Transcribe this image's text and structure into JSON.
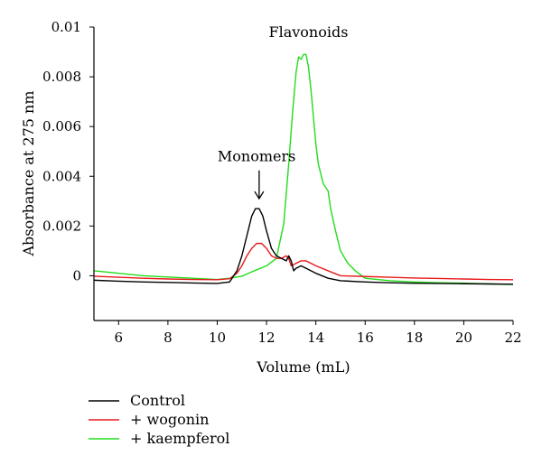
{
  "chart_data": {
    "type": "line",
    "xlabel": "Volume (mL)",
    "ylabel": "Absorbance at 275 nm",
    "xlim": [
      5,
      22
    ],
    "ylim": [
      -0.0018,
      0.01
    ],
    "xticks": [
      6,
      8,
      10,
      12,
      14,
      16,
      18,
      20,
      22
    ],
    "yticks": [
      0,
      0.002,
      0.004,
      0.006,
      0.008,
      0.01
    ],
    "ytick_labels": [
      "0",
      "0.002",
      "0.004",
      "0.006",
      "0.008",
      "0.01"
    ],
    "grid": false,
    "legend_position": "bottom-left",
    "annotations": [
      {
        "text": "Flavonoids",
        "x": 13.7,
        "y": 0.0096
      },
      {
        "text": "Monomers",
        "x": 11.6,
        "y": 0.0046,
        "arrow_to": [
          11.7,
          0.0031
        ]
      }
    ],
    "series": [
      {
        "name": "Control",
        "color": "#000000",
        "x": [
          5,
          6,
          7,
          8,
          9,
          10,
          10.5,
          10.8,
          11,
          11.2,
          11.4,
          11.55,
          11.7,
          11.85,
          12,
          12.2,
          12.4,
          12.6,
          12.8,
          12.9,
          13,
          13.1,
          13.2,
          13.4,
          13.6,
          13.8,
          14,
          14.5,
          15,
          16,
          17,
          18,
          19,
          20,
          21,
          22
        ],
        "y": [
          -0.00018,
          -0.00022,
          -0.00025,
          -0.00027,
          -0.00029,
          -0.00031,
          -0.00025,
          0.0002,
          0.0008,
          0.0016,
          0.0024,
          0.0027,
          0.0027,
          0.0024,
          0.0018,
          0.0011,
          0.0008,
          0.0007,
          0.0006,
          0.0008,
          0.0006,
          0.0002,
          0.0003,
          0.0004,
          0.0003,
          0.0002,
          0.0001,
          -0.0001,
          -0.0002,
          -0.00025,
          -0.00028,
          -0.0003,
          -0.00031,
          -0.00032,
          -0.00033,
          -0.00034
        ]
      },
      {
        "name": "+ wogonin",
        "color": "#e8191c",
        "x": [
          5,
          6,
          7,
          8,
          9,
          10,
          10.5,
          10.8,
          11,
          11.2,
          11.4,
          11.6,
          11.8,
          12,
          12.2,
          12.4,
          12.6,
          12.8,
          12.9,
          13,
          13.2,
          13.4,
          13.6,
          13.8,
          14,
          14.5,
          15,
          16,
          17,
          18,
          19,
          20,
          21,
          22
        ],
        "y": [
          -2e-05,
          -6e-05,
          -0.0001,
          -0.00013,
          -0.00015,
          -0.00016,
          -0.00012,
          0.0001,
          0.0004,
          0.0008,
          0.0011,
          0.0013,
          0.0013,
          0.0011,
          0.0008,
          0.0007,
          0.0007,
          0.0008,
          0.0007,
          0.0004,
          0.0005,
          0.0006,
          0.0006,
          0.0005,
          0.0004,
          0.0002,
          0.0,
          -3e-05,
          -6e-05,
          -9e-05,
          -0.00011,
          -0.00013,
          -0.00015,
          -0.00016
        ]
      },
      {
        "name": "+ kaempferol",
        "color": "#22dd1c",
        "x": [
          5,
          6,
          7,
          8,
          9,
          10,
          10.5,
          11,
          11.5,
          12,
          12.4,
          12.7,
          12.9,
          13.05,
          13.2,
          13.3,
          13.4,
          13.5,
          13.6,
          13.7,
          13.8,
          13.9,
          14,
          14.1,
          14.3,
          14.5,
          14.6,
          14.8,
          15,
          15.3,
          15.6,
          16,
          16.5,
          17,
          18,
          19,
          20,
          21,
          22
        ],
        "y": [
          0.0002,
          0.0001,
          0.0,
          -5e-05,
          -0.0001,
          -0.00015,
          -0.0001,
          -2e-05,
          0.0002,
          0.0004,
          0.0007,
          0.0021,
          0.0045,
          0.0065,
          0.0082,
          0.0088,
          0.0087,
          0.0089,
          0.0089,
          0.0084,
          0.0075,
          0.0064,
          0.0053,
          0.0045,
          0.0037,
          0.0034,
          0.0027,
          0.0018,
          0.001,
          0.0005,
          0.0002,
          -0.0001,
          -0.00015,
          -0.0002,
          -0.00025,
          -0.00028,
          -0.0003,
          -0.00033,
          -0.00035
        ]
      }
    ]
  }
}
